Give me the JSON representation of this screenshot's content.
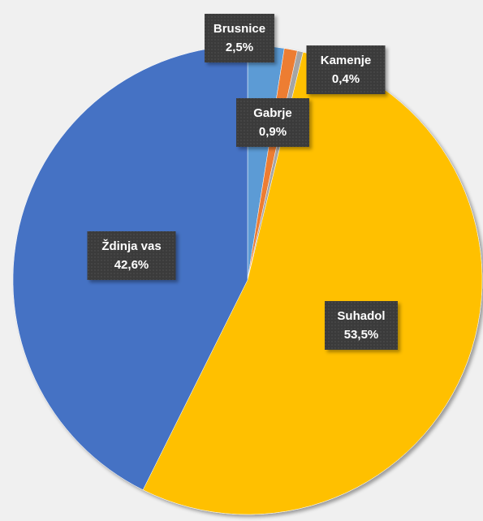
{
  "chart_data": {
    "type": "pie",
    "categories": [
      "Brusnice",
      "Gabrje",
      "Kamenje",
      "Suhadol",
      "Ždinja vas"
    ],
    "values": [
      2.5,
      0.9,
      0.4,
      53.5,
      42.6
    ],
    "value_labels": [
      "2,5%",
      "0,9%",
      "0,4%",
      "53,5%",
      "42,6%"
    ],
    "colors": [
      "#5b9bd5",
      "#ed7d31",
      "#a5a5a5",
      "#ffc000",
      "#4472c4"
    ]
  }
}
